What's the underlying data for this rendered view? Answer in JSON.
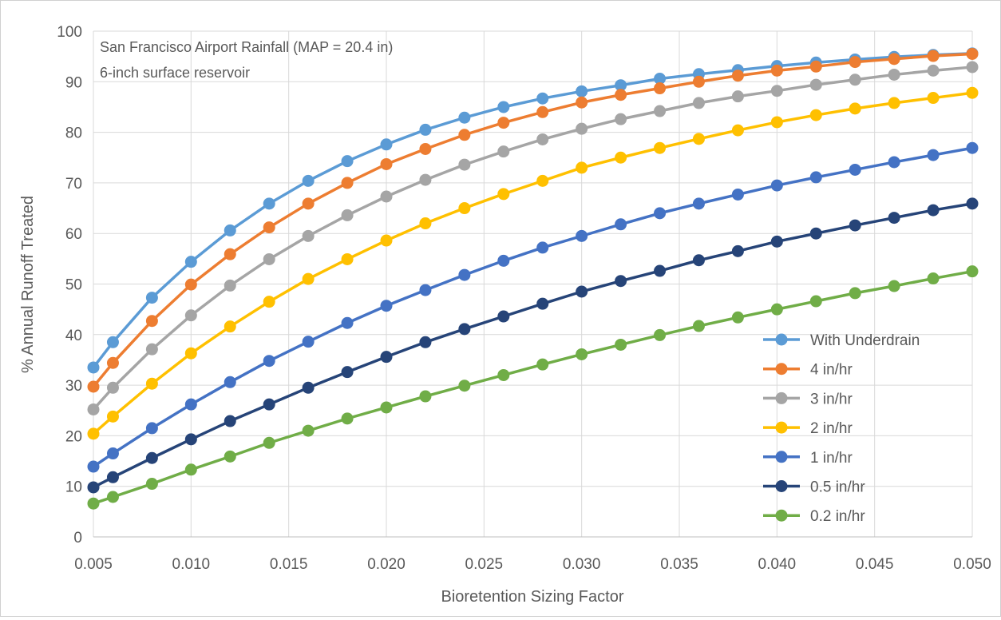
{
  "chart_data": {
    "type": "line",
    "annotation": [
      "San Francisco Airport Rainfall (MAP = 20.4 in)",
      "6-inch surface reservoir"
    ],
    "xlabel": "Bioretention Sizing Factor",
    "ylabel": "% Annual Runoff Treated",
    "xlim": [
      0.005,
      0.05
    ],
    "ylim": [
      0,
      100
    ],
    "x_ticks": [
      "0.005",
      "0.010",
      "0.015",
      "0.020",
      "0.025",
      "0.030",
      "0.035",
      "0.040",
      "0.045",
      "0.050"
    ],
    "y_ticks": [
      "0",
      "10",
      "20",
      "30",
      "40",
      "50",
      "60",
      "70",
      "80",
      "90",
      "100"
    ],
    "grid": true,
    "legend_position": "bottom-right",
    "x": [
      0.005,
      0.006,
      0.008,
      0.01,
      0.012,
      0.014,
      0.016,
      0.018,
      0.02,
      0.022,
      0.024,
      0.026,
      0.028,
      0.03,
      0.032,
      0.034,
      0.036,
      0.038,
      0.04,
      0.042,
      0.044,
      0.046,
      0.048,
      0.05
    ],
    "series": [
      {
        "name": "With Underdrain",
        "color": "#5b9bd5",
        "values": [
          33.5,
          38.5,
          47.3,
          54.4,
          60.6,
          65.9,
          70.4,
          74.3,
          77.6,
          80.5,
          82.9,
          85.0,
          86.7,
          88.1,
          89.3,
          90.6,
          91.5,
          92.3,
          93.1,
          93.8,
          94.4,
          94.9,
          95.3,
          95.6
        ]
      },
      {
        "name": "4 in/hr",
        "color": "#ed7d31",
        "values": [
          29.7,
          34.4,
          42.7,
          49.9,
          55.9,
          61.2,
          65.9,
          70.0,
          73.7,
          76.7,
          79.5,
          81.9,
          84.0,
          85.9,
          87.4,
          88.7,
          90.0,
          91.2,
          92.2,
          93.0,
          93.9,
          94.5,
          95.1,
          95.5
        ]
      },
      {
        "name": "3 in/hr",
        "color": "#a5a5a5",
        "values": [
          25.2,
          29.5,
          37.1,
          43.8,
          49.7,
          54.9,
          59.5,
          63.6,
          67.3,
          70.6,
          73.6,
          76.2,
          78.6,
          80.7,
          82.6,
          84.2,
          85.8,
          87.1,
          88.2,
          89.4,
          90.4,
          91.4,
          92.2,
          92.9
        ]
      },
      {
        "name": "2 in/hr",
        "color": "#ffc000",
        "values": [
          20.4,
          23.8,
          30.3,
          36.3,
          41.6,
          46.5,
          51.0,
          54.9,
          58.6,
          62.0,
          65.0,
          67.8,
          70.4,
          73.0,
          75.0,
          76.9,
          78.7,
          80.4,
          82.0,
          83.4,
          84.7,
          85.8,
          86.8,
          87.8
        ]
      },
      {
        "name": "1 in/hr",
        "color": "#4472c4",
        "values": [
          13.9,
          16.5,
          21.5,
          26.2,
          30.6,
          34.8,
          38.6,
          42.3,
          45.7,
          48.8,
          51.8,
          54.6,
          57.2,
          59.5,
          61.8,
          64.0,
          65.9,
          67.7,
          69.5,
          71.1,
          72.6,
          74.1,
          75.5,
          76.9
        ]
      },
      {
        "name": "0.5 in/hr",
        "color": "#264478",
        "values": [
          9.8,
          11.8,
          15.6,
          19.3,
          22.9,
          26.2,
          29.5,
          32.6,
          35.6,
          38.5,
          41.1,
          43.6,
          46.1,
          48.5,
          50.6,
          52.6,
          54.7,
          56.5,
          58.4,
          60.0,
          61.6,
          63.1,
          64.6,
          65.9
        ]
      },
      {
        "name": "0.2 in/hr",
        "color": "#70ad47",
        "values": [
          6.6,
          7.9,
          10.5,
          13.3,
          15.9,
          18.6,
          21.0,
          23.4,
          25.6,
          27.8,
          29.9,
          32.0,
          34.1,
          36.1,
          38.0,
          39.9,
          41.7,
          43.4,
          45.0,
          46.6,
          48.2,
          49.6,
          51.1,
          52.5
        ]
      }
    ]
  }
}
